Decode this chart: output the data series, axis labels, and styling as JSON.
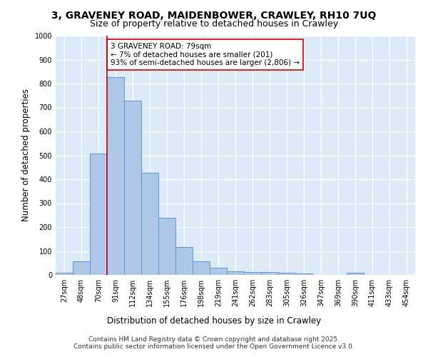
{
  "title_line1": "3, GRAVENEY ROAD, MAIDENBOWER, CRAWLEY, RH10 7UQ",
  "title_line2": "Size of property relative to detached houses in Crawley",
  "xlabel": "Distribution of detached houses by size in Crawley",
  "ylabel": "Number of detached properties",
  "bar_color": "#aec6e8",
  "bar_edge_color": "#5b9bd5",
  "background_color": "#ddeaf8",
  "grid_color": "#ffffff",
  "categories": [
    "27sqm",
    "48sqm",
    "70sqm",
    "91sqm",
    "112sqm",
    "134sqm",
    "155sqm",
    "176sqm",
    "198sqm",
    "219sqm",
    "241sqm",
    "262sqm",
    "283sqm",
    "305sqm",
    "326sqm",
    "347sqm",
    "369sqm",
    "390sqm",
    "411sqm",
    "433sqm",
    "454sqm"
  ],
  "values": [
    8,
    58,
    508,
    828,
    728,
    428,
    238,
    115,
    57,
    30,
    15,
    11,
    13,
    8,
    5,
    0,
    0,
    8,
    0,
    0,
    0
  ],
  "red_line_x": 2.5,
  "annotation_text": "3 GRAVENEY ROAD: 79sqm\n← 7% of detached houses are smaller (201)\n93% of semi-detached houses are larger (2,806) →",
  "annotation_box_color": "#ffffff",
  "annotation_border_color": "#cc0000",
  "red_line_color": "#cc0000",
  "ylim": [
    0,
    1000
  ],
  "yticks": [
    0,
    100,
    200,
    300,
    400,
    500,
    600,
    700,
    800,
    900,
    1000
  ],
  "footer_line1": "Contains HM Land Registry data © Crown copyright and database right 2025.",
  "footer_line2": "Contains public sector information licensed under the Open Government Licence v3.0.",
  "title_fontsize": 10,
  "subtitle_fontsize": 9,
  "axis_label_fontsize": 8.5,
  "tick_fontsize": 7,
  "annotation_fontsize": 7.5,
  "footer_fontsize": 6.5
}
